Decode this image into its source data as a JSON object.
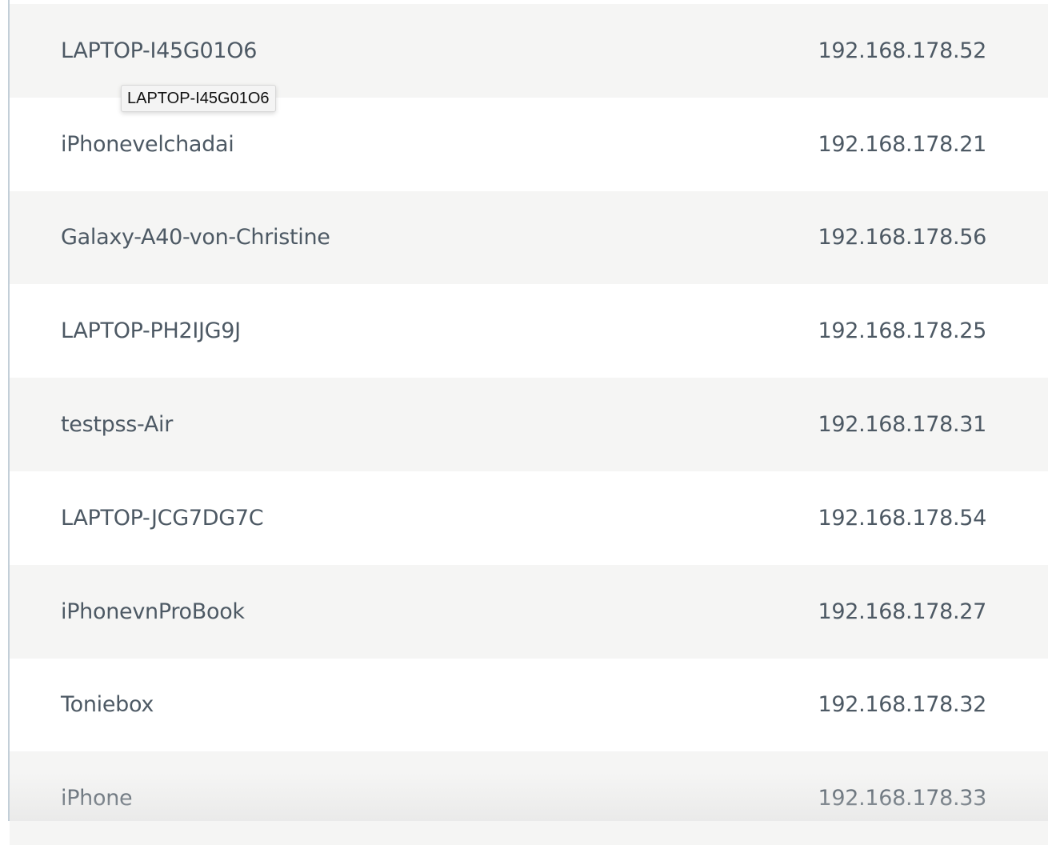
{
  "devices": [
    {
      "name": "LAPTOP-I45G01O6",
      "ip": "192.168.178.52"
    },
    {
      "name": "iPhonevelchadai",
      "ip": "192.168.178.21"
    },
    {
      "name": "Galaxy-A40-von-Christine",
      "ip": "192.168.178.56"
    },
    {
      "name": "LAPTOP-PH2IJG9J",
      "ip": "192.168.178.25"
    },
    {
      "name": "testpss-Air",
      "ip": "192.168.178.31"
    },
    {
      "name": "LAPTOP-JCG7DG7C",
      "ip": "192.168.178.54"
    },
    {
      "name": "iPhonevnProBook",
      "ip": "192.168.178.27"
    },
    {
      "name": "Toniebox",
      "ip": "192.168.178.32"
    },
    {
      "name": "iPhone",
      "ip": "192.168.178.33"
    }
  ],
  "tooltip": {
    "text": "LAPTOP-I45G01O6"
  }
}
